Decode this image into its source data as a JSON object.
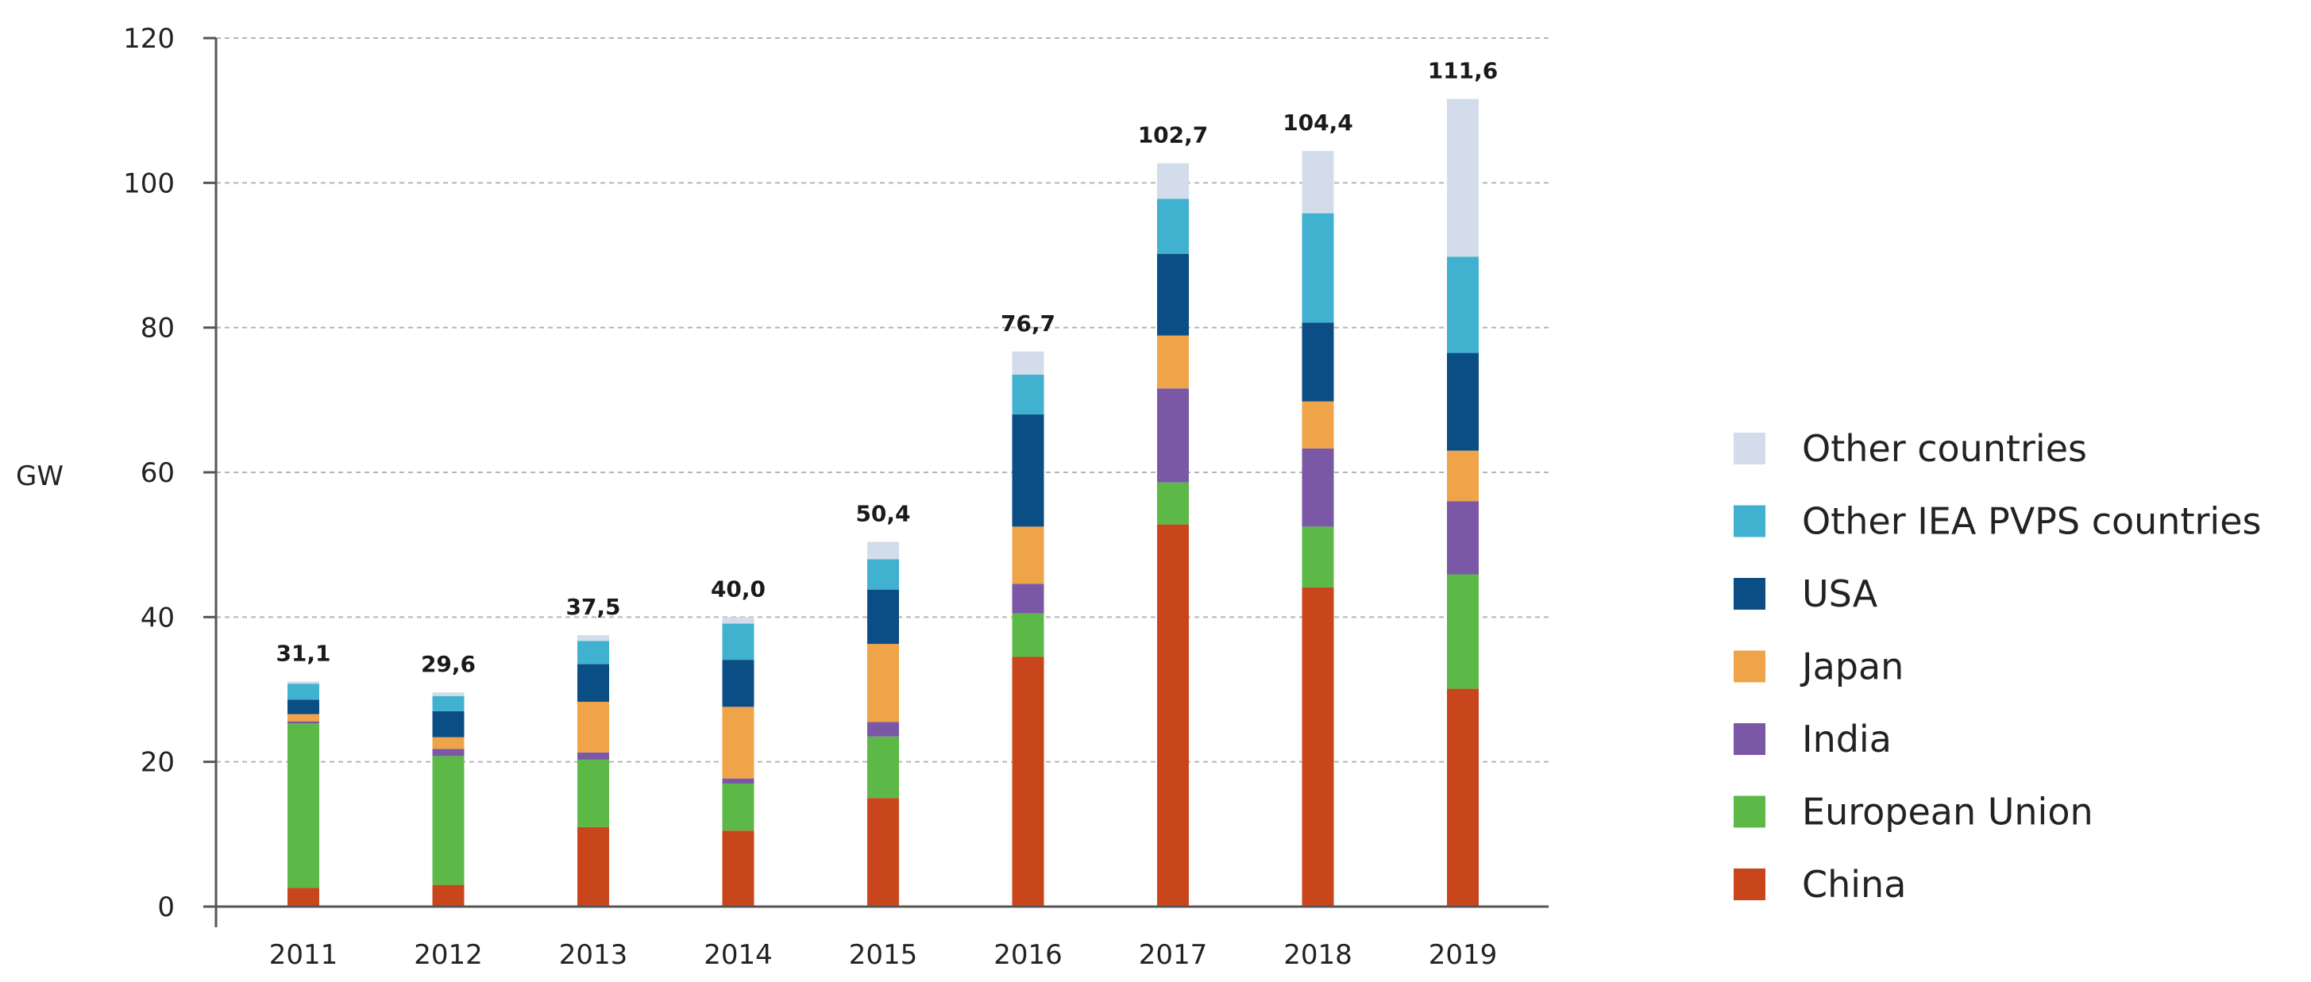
{
  "chart_data": {
    "type": "bar",
    "stacked": true,
    "ylabel": "GW",
    "xlabel": "",
    "ylim": [
      0,
      120
    ],
    "yticks": [
      0,
      20,
      40,
      60,
      80,
      100,
      120
    ],
    "grid": true,
    "legend_position": "right",
    "categories": [
      "2011",
      "2012",
      "2013",
      "2014",
      "2015",
      "2016",
      "2017",
      "2018",
      "2019"
    ],
    "totals": [
      "31,1",
      "29,6",
      "37,5",
      "40,0",
      "50,4",
      "76,7",
      "102,7",
      "104,4",
      "111,6"
    ],
    "series": [
      {
        "name": "China",
        "color": "#c9461d",
        "values": [
          2.6,
          3.0,
          11.0,
          10.5,
          15.0,
          34.5,
          52.8,
          44.1,
          30.1
        ]
      },
      {
        "name": "European Union",
        "color": "#5cb947",
        "values": [
          22.7,
          17.8,
          9.3,
          6.5,
          8.5,
          6.0,
          5.8,
          8.4,
          15.8
        ]
      },
      {
        "name": "India",
        "color": "#7b58a6",
        "values": [
          0.3,
          1.0,
          1.0,
          0.7,
          2.0,
          4.1,
          13.0,
          10.8,
          10.1
        ]
      },
      {
        "name": "Japan",
        "color": "#f0a449",
        "values": [
          1.0,
          1.6,
          7.0,
          9.9,
          10.8,
          7.9,
          7.3,
          6.5,
          7.0
        ]
      },
      {
        "name": "USA",
        "color": "#0b4d85",
        "values": [
          2.0,
          3.6,
          5.2,
          6.5,
          7.5,
          15.5,
          11.3,
          10.9,
          13.5
        ]
      },
      {
        "name": "Other IEA PVPS countries",
        "color": "#41b1d0",
        "values": [
          2.2,
          2.1,
          3.2,
          5.0,
          4.2,
          5.5,
          7.6,
          15.1,
          13.3
        ]
      },
      {
        "name": "Other countries",
        "color": "#d3dcea",
        "values": [
          0.3,
          0.5,
          0.8,
          0.9,
          2.4,
          3.2,
          4.9,
          8.6,
          21.8
        ]
      }
    ]
  }
}
